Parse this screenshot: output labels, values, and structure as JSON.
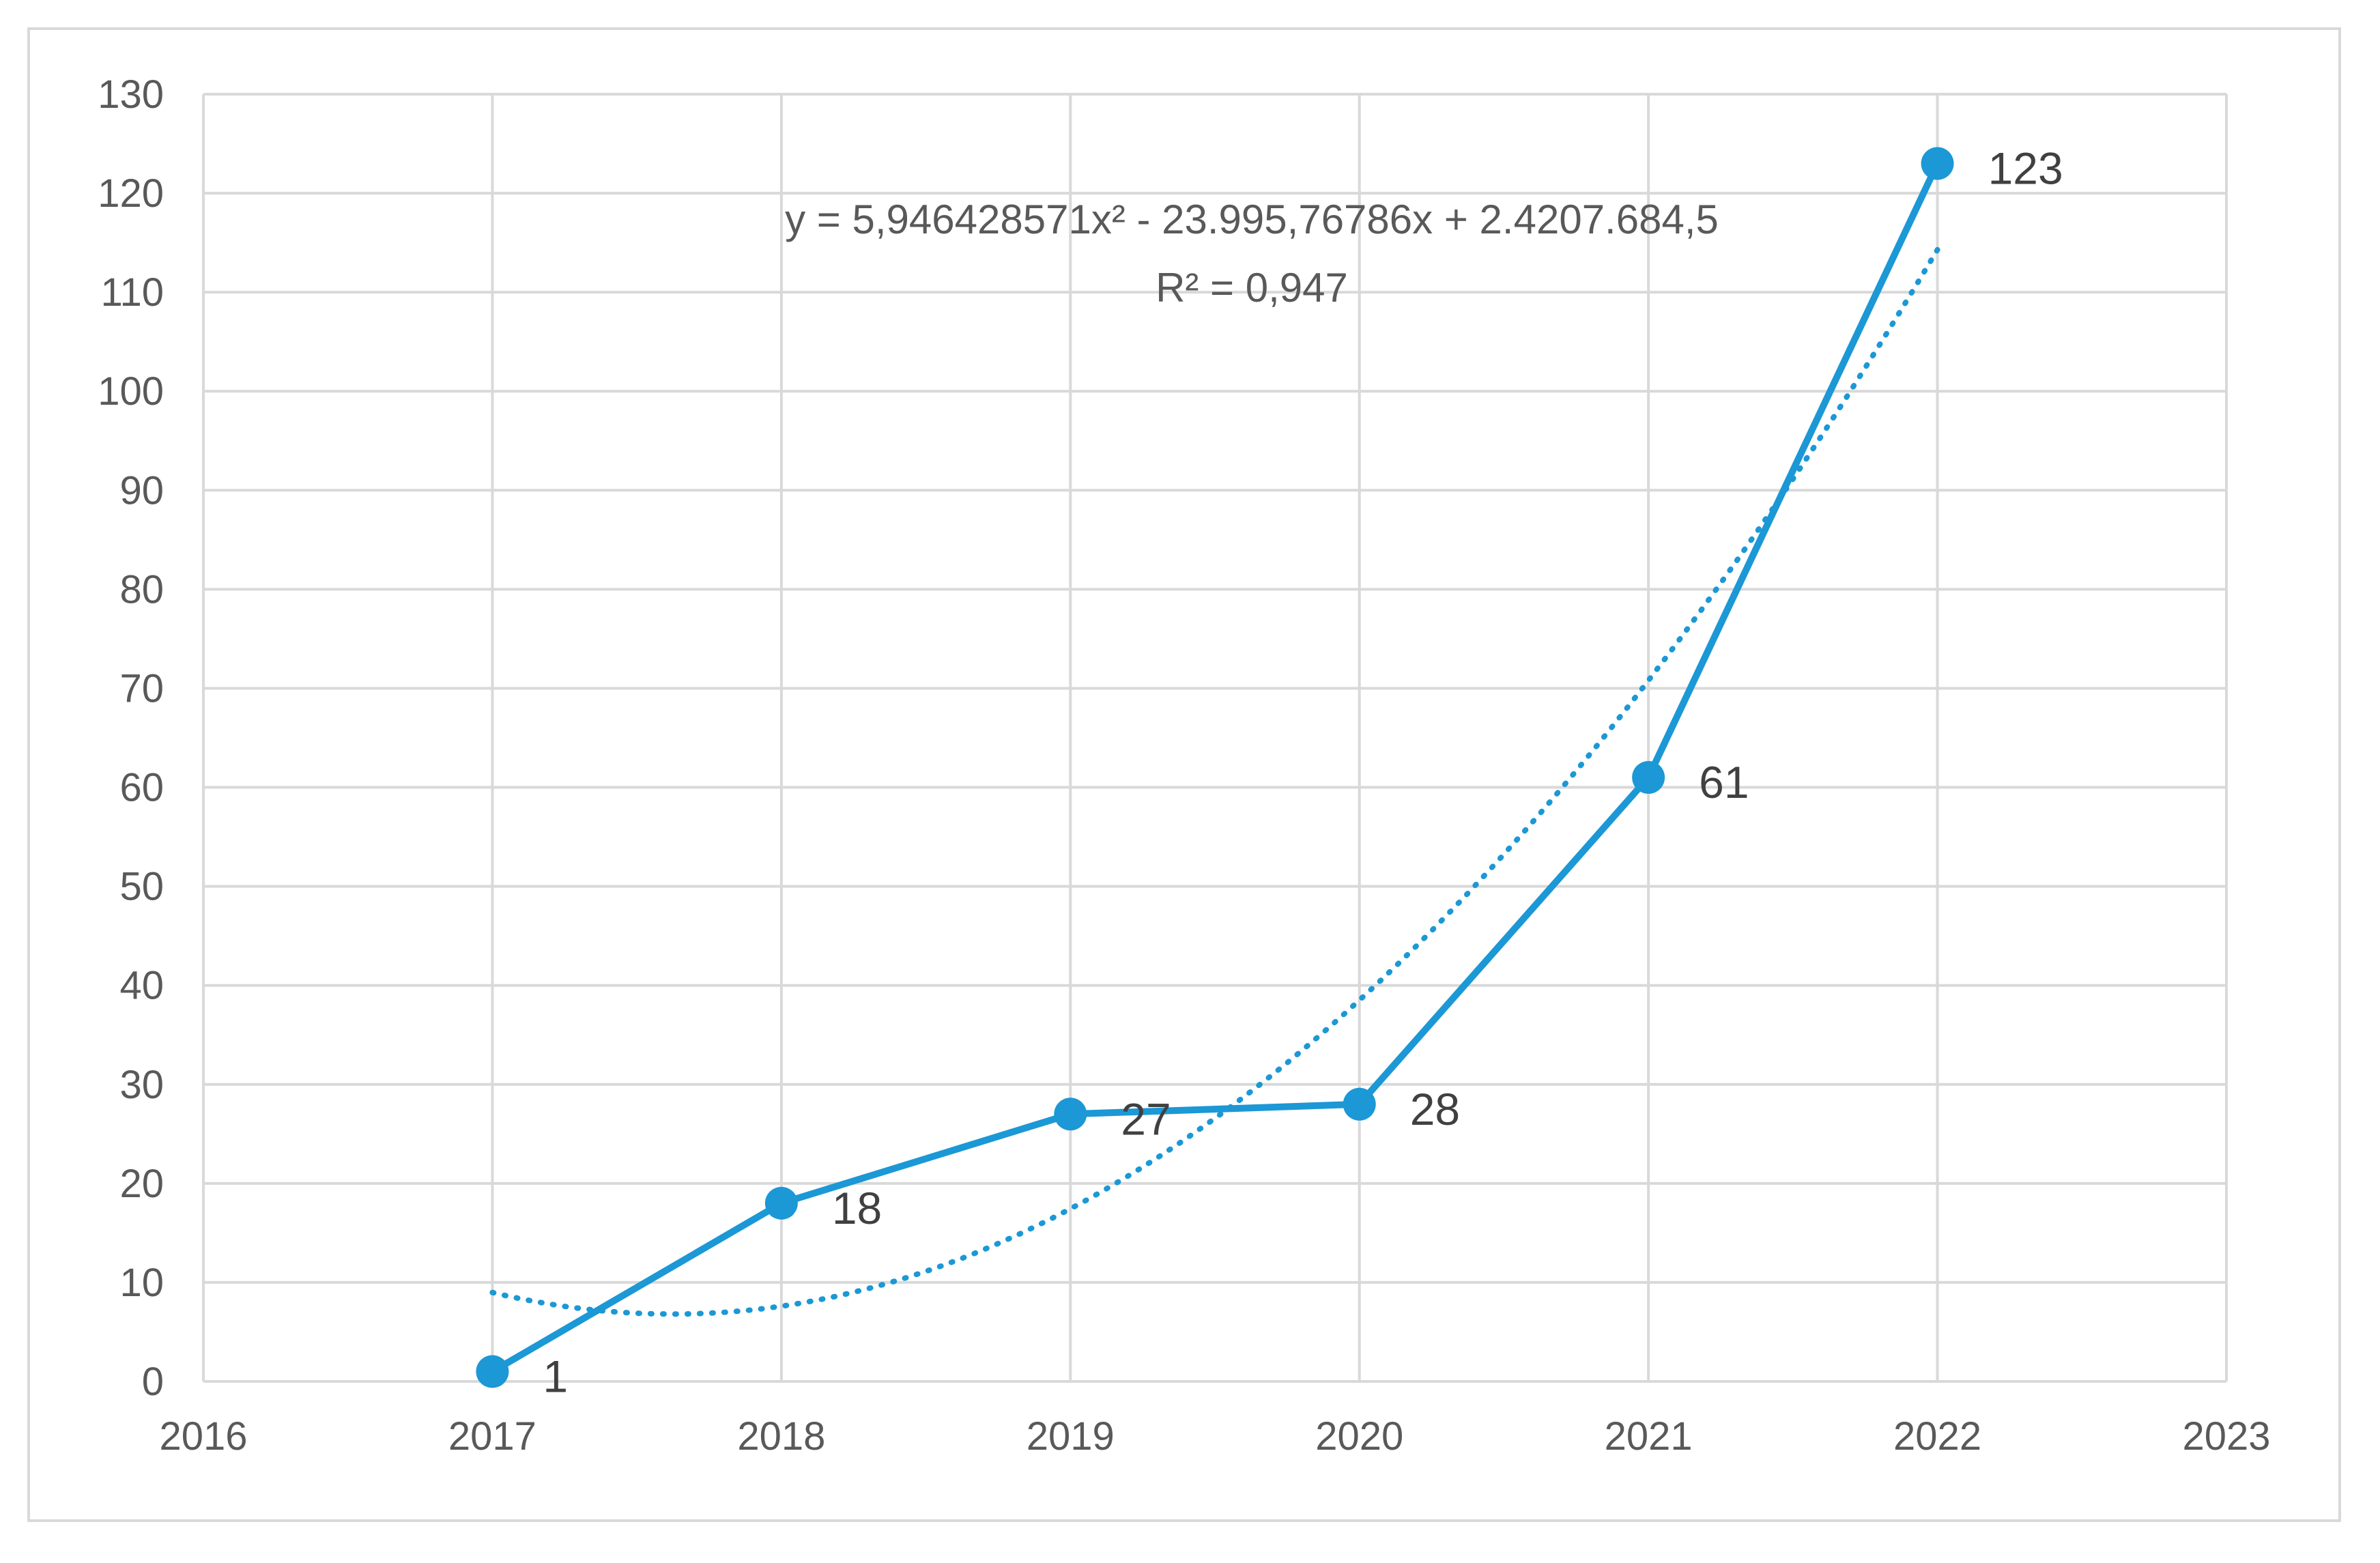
{
  "chart_data": {
    "type": "line",
    "x": [
      2017,
      2018,
      2019,
      2020,
      2021,
      2022
    ],
    "series": [
      {
        "values": [
          1,
          18,
          27,
          28,
          61,
          123
        ],
        "color": "#1b98d5"
      }
    ],
    "data_labels": [
      "1",
      "18",
      "27",
      "28",
      "61",
      "123"
    ],
    "trendline": {
      "kind": "polynomial-2",
      "style": "dotted",
      "color": "#1b98d5",
      "x": [
        2017,
        2018,
        2019,
        2020,
        2021,
        2022
      ],
      "values": [
        9.1,
        7.5,
        17.3,
        38.3,
        71.4,
        114
      ]
    },
    "annotations": {
      "equation": "y = 5,946428571x² - 23.995,76786x + 2.4207.684,5",
      "r_squared": "R² = 0,947"
    },
    "xlim": [
      2016,
      2023
    ],
    "ylim": [
      0,
      130
    ],
    "x_ticks": [
      "2016",
      "2017",
      "2018",
      "2019",
      "2020",
      "2021",
      "2022",
      "2023"
    ],
    "y_ticks": [
      "0",
      "10",
      "20",
      "30",
      "40",
      "50",
      "60",
      "70",
      "80",
      "90",
      "100",
      "110",
      "120",
      "130"
    ],
    "grid": true,
    "grid_color": "#d9d9d9",
    "title": "",
    "xlabel": "",
    "ylabel": ""
  }
}
